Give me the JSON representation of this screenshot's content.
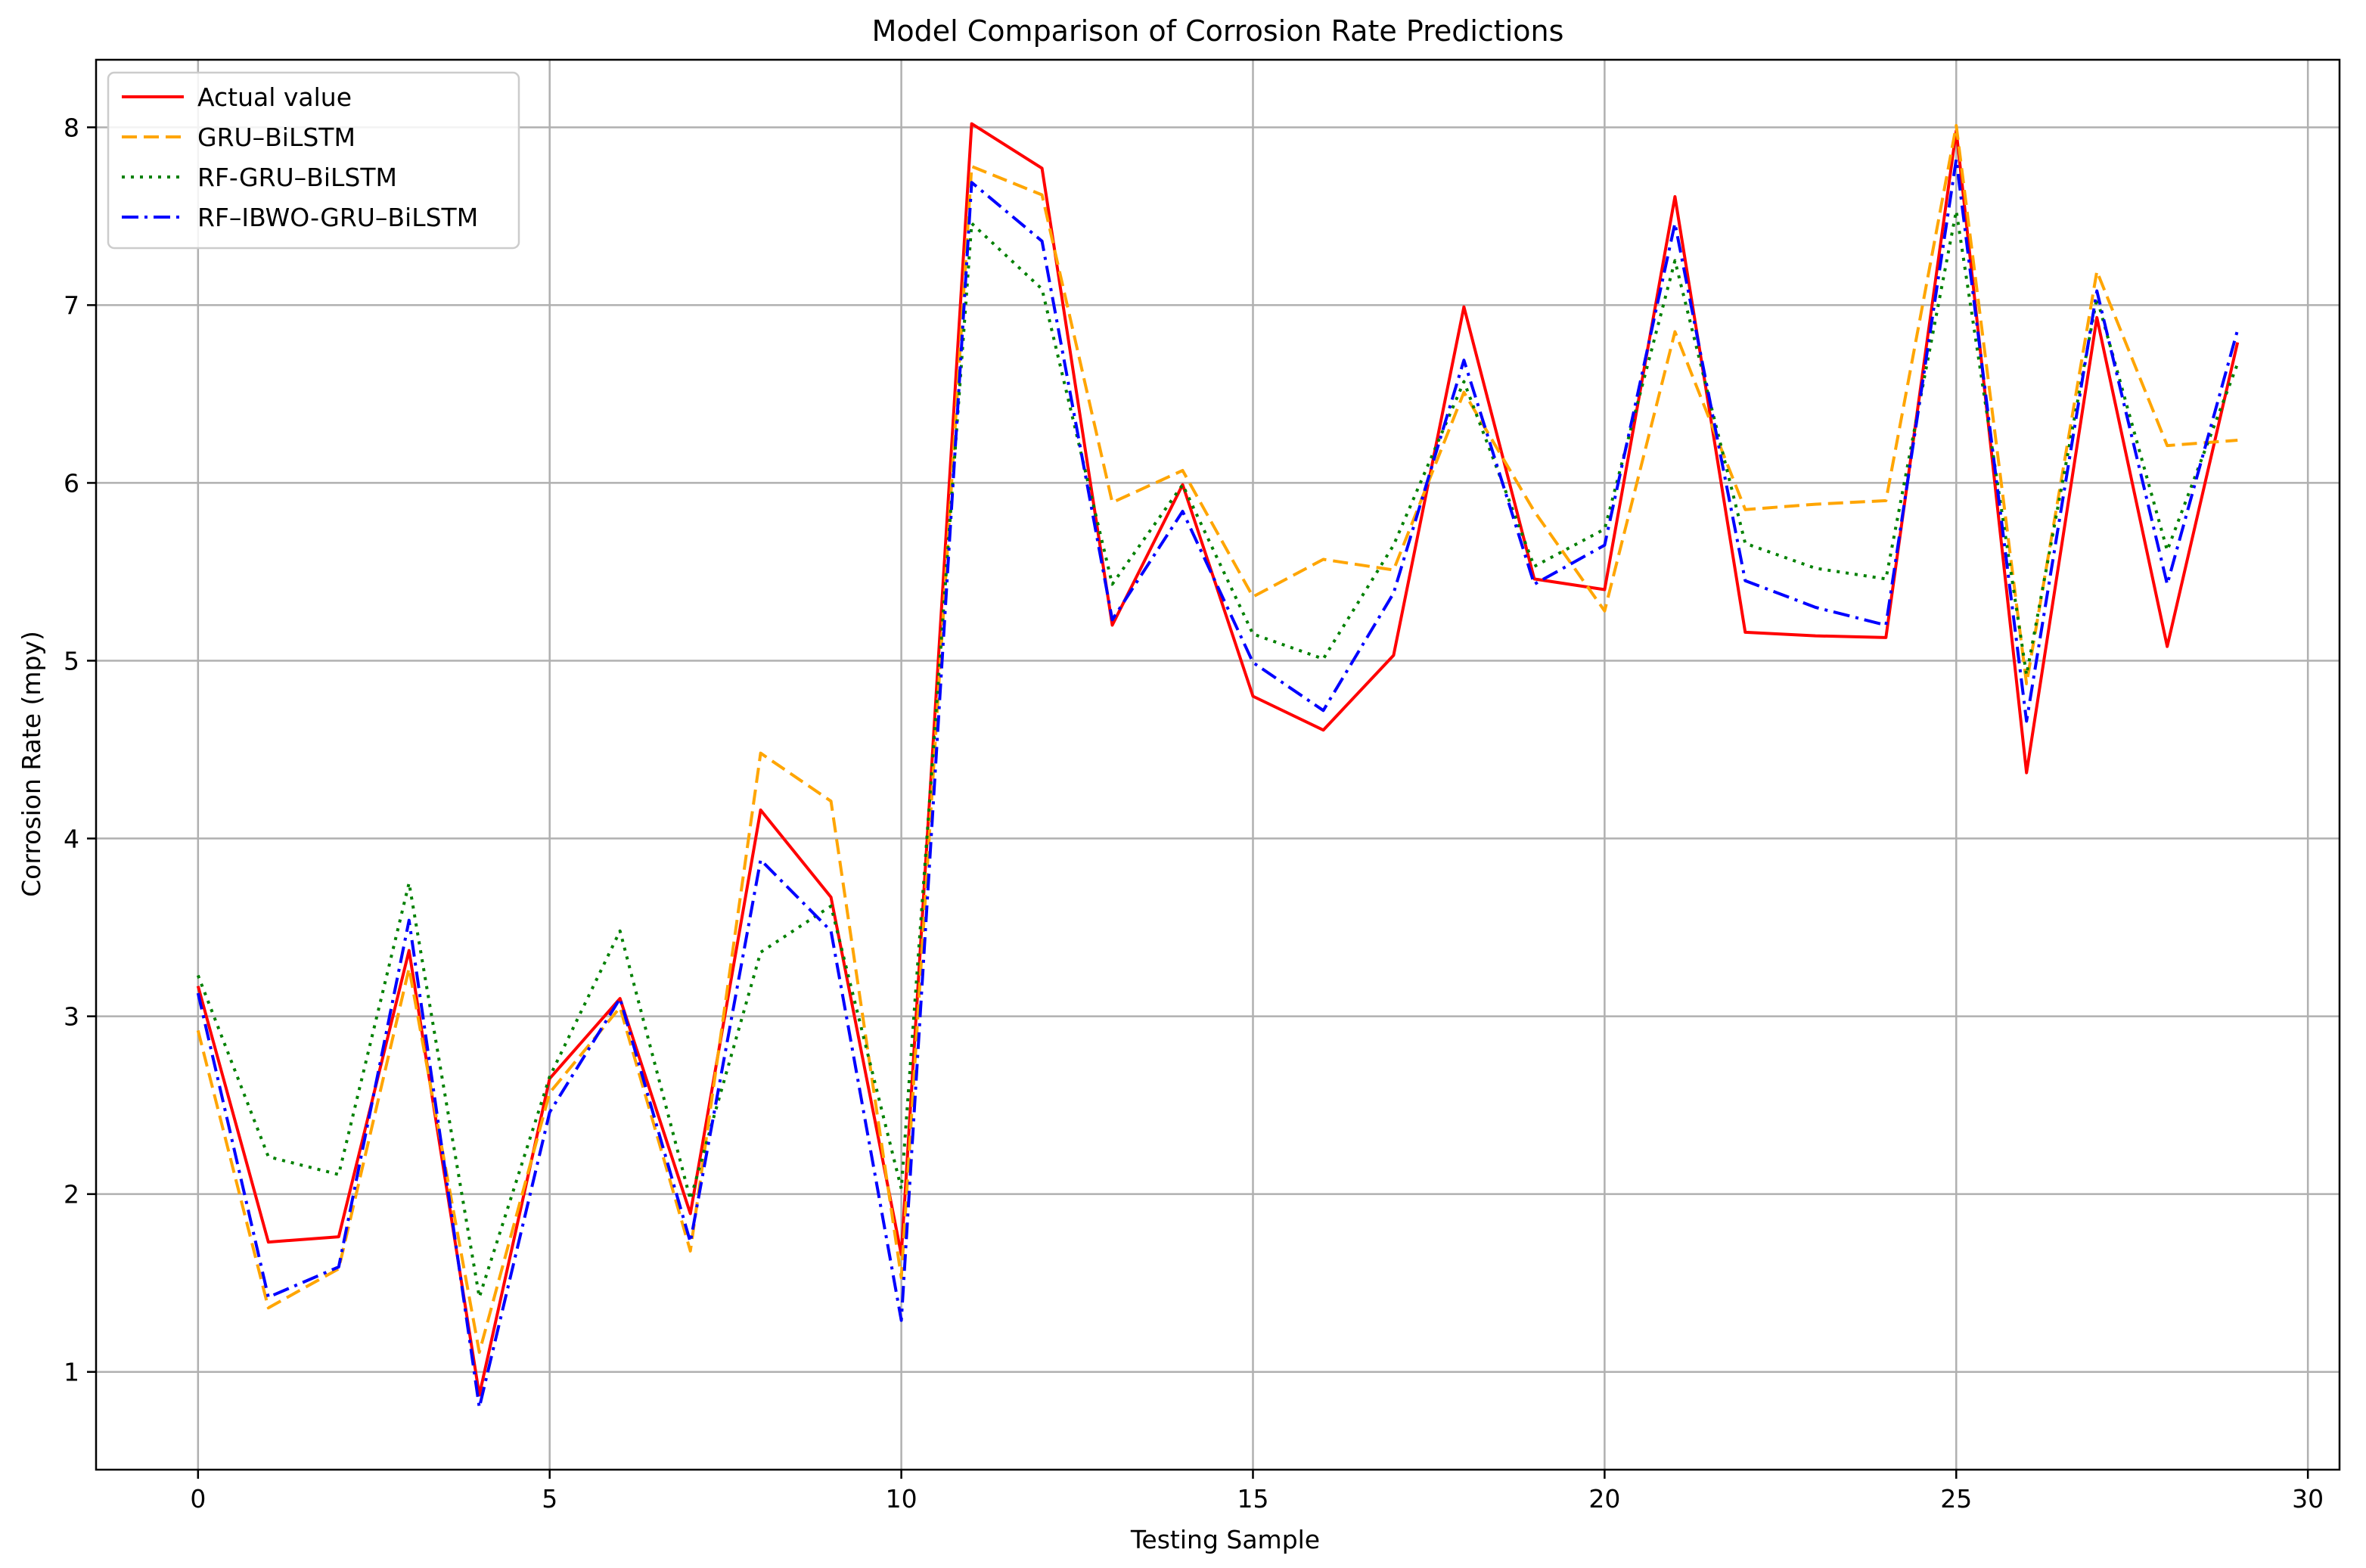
{
  "chart_data": {
    "type": "line",
    "title": "Model Comparison of Corrosion Rate Predictions",
    "xlabel": "Testing Sample",
    "ylabel": "Corrosion Rate (mpy)",
    "xlim": [
      -1.45,
      30.45
    ],
    "ylim": [
      0.45,
      8.38
    ],
    "xticks": [
      0,
      5,
      10,
      15,
      20,
      25,
      30
    ],
    "yticks": [
      1,
      2,
      3,
      4,
      5,
      6,
      7,
      8
    ],
    "grid": true,
    "legend_position": "top-left",
    "x": [
      0,
      1,
      2,
      3,
      4,
      5,
      6,
      7,
      8,
      9,
      10,
      11,
      12,
      13,
      14,
      15,
      16,
      17,
      18,
      19,
      20,
      21,
      22,
      23,
      24,
      25,
      26,
      27,
      28,
      29
    ],
    "series": [
      {
        "name": "Actual value",
        "color": "#ff0000",
        "dash": "solid",
        "values": [
          3.17,
          1.73,
          1.76,
          3.37,
          0.87,
          2.65,
          3.1,
          1.89,
          4.16,
          3.67,
          1.66,
          8.02,
          7.77,
          5.2,
          5.99,
          4.8,
          4.61,
          5.03,
          6.99,
          5.46,
          5.4,
          7.61,
          5.16,
          5.14,
          5.13,
          7.98,
          4.37,
          6.93,
          5.08,
          6.79
        ]
      },
      {
        "name": "GRU–BiLSTM",
        "color": "#ffa500",
        "dash": "dashed",
        "values": [
          2.92,
          1.36,
          1.58,
          3.27,
          1.11,
          2.57,
          3.05,
          1.68,
          4.48,
          4.21,
          1.53,
          7.78,
          7.62,
          5.89,
          6.07,
          5.36,
          5.57,
          5.51,
          6.51,
          5.84,
          5.28,
          6.85,
          5.85,
          5.88,
          5.9,
          8.01,
          4.87,
          7.19,
          6.21,
          6.24
        ]
      },
      {
        "name": "RF-GRU–BiLSTM",
        "color": "#008000",
        "dash": "dotted",
        "values": [
          3.23,
          2.21,
          2.11,
          3.75,
          1.42,
          2.66,
          3.48,
          1.97,
          3.36,
          3.62,
          2.03,
          7.46,
          7.09,
          5.43,
          5.99,
          5.15,
          5.01,
          5.65,
          6.57,
          5.53,
          5.74,
          7.25,
          5.66,
          5.52,
          5.46,
          7.53,
          4.92,
          7.04,
          5.62,
          6.67
        ]
      },
      {
        "name": "RF–IBWO-GRU–BiLSTM",
        "color": "#0000ff",
        "dash": "dashdot",
        "values": [
          3.13,
          1.42,
          1.59,
          3.54,
          0.8,
          2.46,
          3.1,
          1.73,
          3.88,
          3.48,
          1.29,
          7.69,
          7.36,
          5.23,
          5.84,
          4.99,
          4.72,
          5.38,
          6.69,
          5.43,
          5.65,
          7.46,
          5.45,
          5.3,
          5.2,
          7.82,
          4.66,
          7.08,
          5.43,
          6.86
        ]
      }
    ]
  }
}
